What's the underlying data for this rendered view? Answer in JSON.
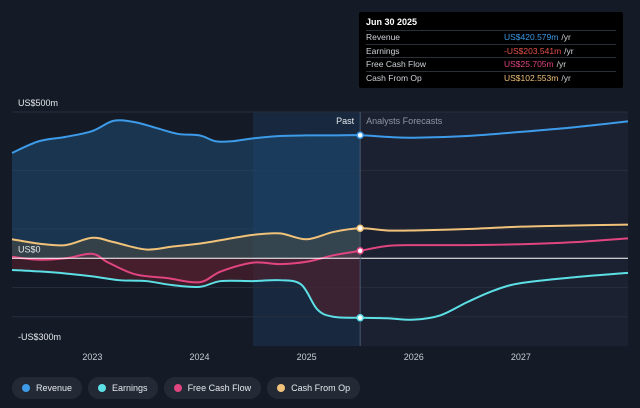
{
  "chart_data": {
    "type": "area",
    "y_axis_labels": {
      "top": "US$500m",
      "zero": "US$0",
      "bottom": "-US$300m"
    },
    "ylim": [
      -300,
      500
    ],
    "x_ticks": [
      "2023",
      "2024",
      "2025",
      "2026",
      "2027"
    ],
    "x_tick_values": [
      2023.0,
      2024.0,
      2025.0,
      2026.0,
      2027.0
    ],
    "xlim": [
      2022.25,
      2028.0
    ],
    "past_label": "Past",
    "forecast_label": "Analysts Forecasts",
    "past_end": 2025.5,
    "highlight_start": 2024.5,
    "series": [
      {
        "name": "Revenue",
        "color": "#3d9be9",
        "x": [
          2022.25,
          2022.5,
          2022.75,
          2023.0,
          2023.2,
          2023.4,
          2023.6,
          2023.8,
          2024.0,
          2024.15,
          2024.3,
          2024.5,
          2024.75,
          2025.0,
          2025.25,
          2025.5,
          2025.75,
          2026.0,
          2026.5,
          2027.0,
          2027.5,
          2028.0
        ],
        "y": [
          360,
          400,
          415,
          435,
          470,
          465,
          445,
          425,
          420,
          400,
          400,
          410,
          418,
          420,
          420,
          420.579,
          415,
          412,
          418,
          432,
          448,
          468
        ]
      },
      {
        "name": "Earnings",
        "color": "#5ce0e6",
        "x": [
          2022.25,
          2022.5,
          2022.75,
          2023.0,
          2023.25,
          2023.5,
          2023.75,
          2024.0,
          2024.2,
          2024.5,
          2024.75,
          2024.95,
          2025.1,
          2025.25,
          2025.5,
          2025.75,
          2026.0,
          2026.25,
          2026.5,
          2026.75,
          2027.0,
          2027.5,
          2028.0
        ],
        "y": [
          -40,
          -45,
          -52,
          -62,
          -75,
          -78,
          -92,
          -98,
          -78,
          -78,
          -75,
          -90,
          -175,
          -200,
          -203.541,
          -205,
          -210,
          -195,
          -150,
          -110,
          -85,
          -65,
          -50
        ]
      },
      {
        "name": "Free Cash Flow",
        "color": "#e0457f",
        "x": [
          2022.25,
          2022.5,
          2022.75,
          2023.0,
          2023.15,
          2023.4,
          2023.7,
          2024.0,
          2024.2,
          2024.5,
          2024.75,
          2025.0,
          2025.25,
          2025.5,
          2025.75,
          2026.0,
          2026.5,
          2027.0,
          2027.5,
          2028.0
        ],
        "y": [
          5,
          -5,
          0,
          15,
          -15,
          -55,
          -68,
          -82,
          -45,
          -15,
          -20,
          -12,
          10,
          25.705,
          42,
          45,
          45,
          48,
          55,
          68
        ]
      },
      {
        "name": "Cash From Op",
        "color": "#f1c27a",
        "x": [
          2022.25,
          2022.5,
          2022.75,
          2023.0,
          2023.2,
          2023.5,
          2023.75,
          2024.0,
          2024.25,
          2024.5,
          2024.75,
          2025.0,
          2025.25,
          2025.5,
          2025.75,
          2026.0,
          2026.5,
          2027.0,
          2027.5,
          2028.0
        ],
        "y": [
          65,
          50,
          45,
          70,
          55,
          30,
          40,
          50,
          65,
          80,
          85,
          65,
          90,
          102.553,
          95,
          95,
          100,
          108,
          112,
          115
        ]
      }
    ],
    "tooltip": {
      "title": "Jun 30 2025",
      "rows": [
        {
          "label": "Revenue",
          "value": "US$420.579m",
          "unit": "/yr",
          "color": "#3d9be9"
        },
        {
          "label": "Earnings",
          "value": "-US$203.541m",
          "unit": "/yr",
          "color": "#e8524a"
        },
        {
          "label": "Free Cash Flow",
          "value": "US$25.705m",
          "unit": "/yr",
          "color": "#e0457f"
        },
        {
          "label": "Cash From Op",
          "value": "US$102.553m",
          "unit": "/yr",
          "color": "#f1c27a"
        }
      ]
    },
    "legend": [
      {
        "label": "Revenue",
        "color": "#3d9be9"
      },
      {
        "label": "Earnings",
        "color": "#5ce0e6"
      },
      {
        "label": "Free Cash Flow",
        "color": "#e0457f"
      },
      {
        "label": "Cash From Op",
        "color": "#f1c27a"
      }
    ]
  }
}
